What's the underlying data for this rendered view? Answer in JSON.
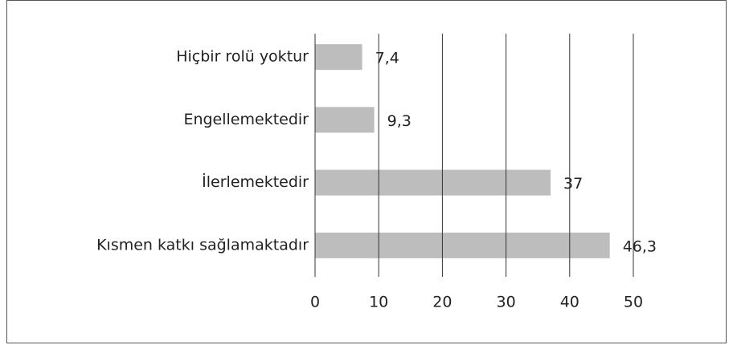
{
  "chart_data": {
    "type": "barh",
    "categories": [
      "Hiçbir rolü yoktur",
      "Engellemektedir",
      "İlerlemektedir",
      "Kısmen katkı sağlamaktadır"
    ],
    "values": [
      7.4,
      9.3,
      37,
      46.3
    ],
    "value_labels": [
      "7,4",
      "9,3",
      "37",
      "46,3"
    ],
    "color": "#bdbdbd",
    "xlim": [
      0,
      50
    ],
    "xticks": [
      0,
      10,
      20,
      30,
      40,
      50
    ],
    "grid": true
  }
}
